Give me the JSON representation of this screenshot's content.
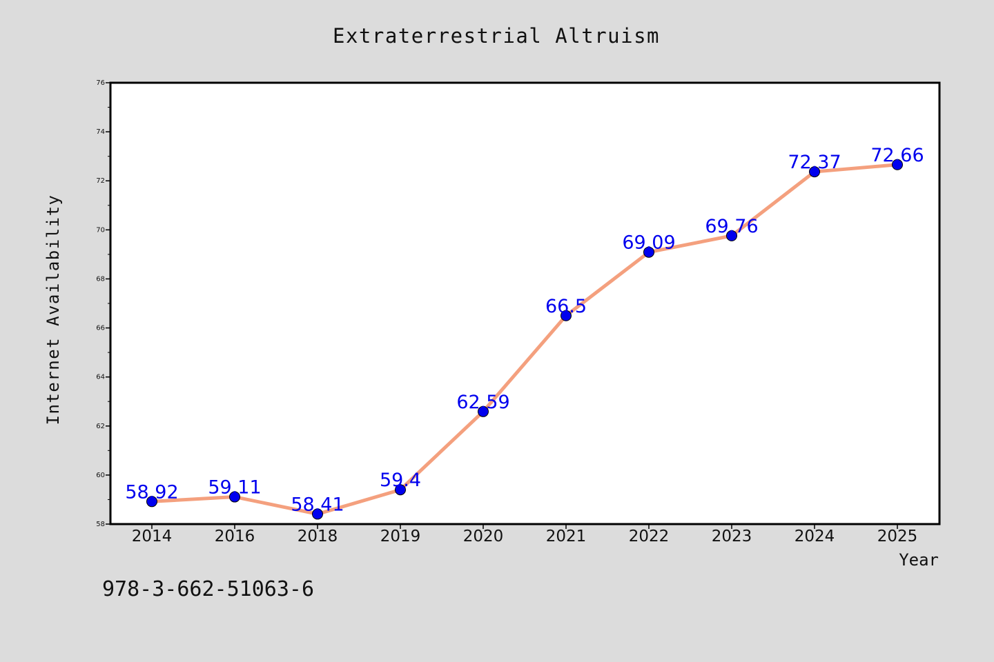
{
  "chart_data": {
    "type": "line",
    "title": "Extraterrestrial Altruism",
    "xlabel": "Year",
    "ylabel": "Internet Availability",
    "categories": [
      "2014",
      "2016",
      "2018",
      "2019",
      "2020",
      "2021",
      "2022",
      "2023",
      "2024",
      "2025"
    ],
    "series": [
      {
        "values": [
          58.92,
          59.11,
          58.41,
          59.4,
          62.59,
          66.5,
          69.09,
          69.76,
          72.37,
          72.66
        ],
        "labels": [
          "58.92",
          "59.11",
          "58.41",
          "59.4",
          "62.59",
          "66.5",
          "69.09",
          "69.76",
          "72.37",
          "72.66"
        ]
      }
    ],
    "ylim": [
      58,
      76
    ],
    "yticks": [
      "58",
      "60",
      "62",
      "64",
      "66",
      "68",
      "70",
      "72",
      "74",
      "76"
    ],
    "grid": false,
    "line_color": "#f4a07e",
    "marker_color": "#0000ee",
    "label_color": "#0000ee",
    "background_color": "#dcdcdc",
    "plot_background_color": "#ffffff"
  },
  "annotation": "978-3-662-51063-6"
}
